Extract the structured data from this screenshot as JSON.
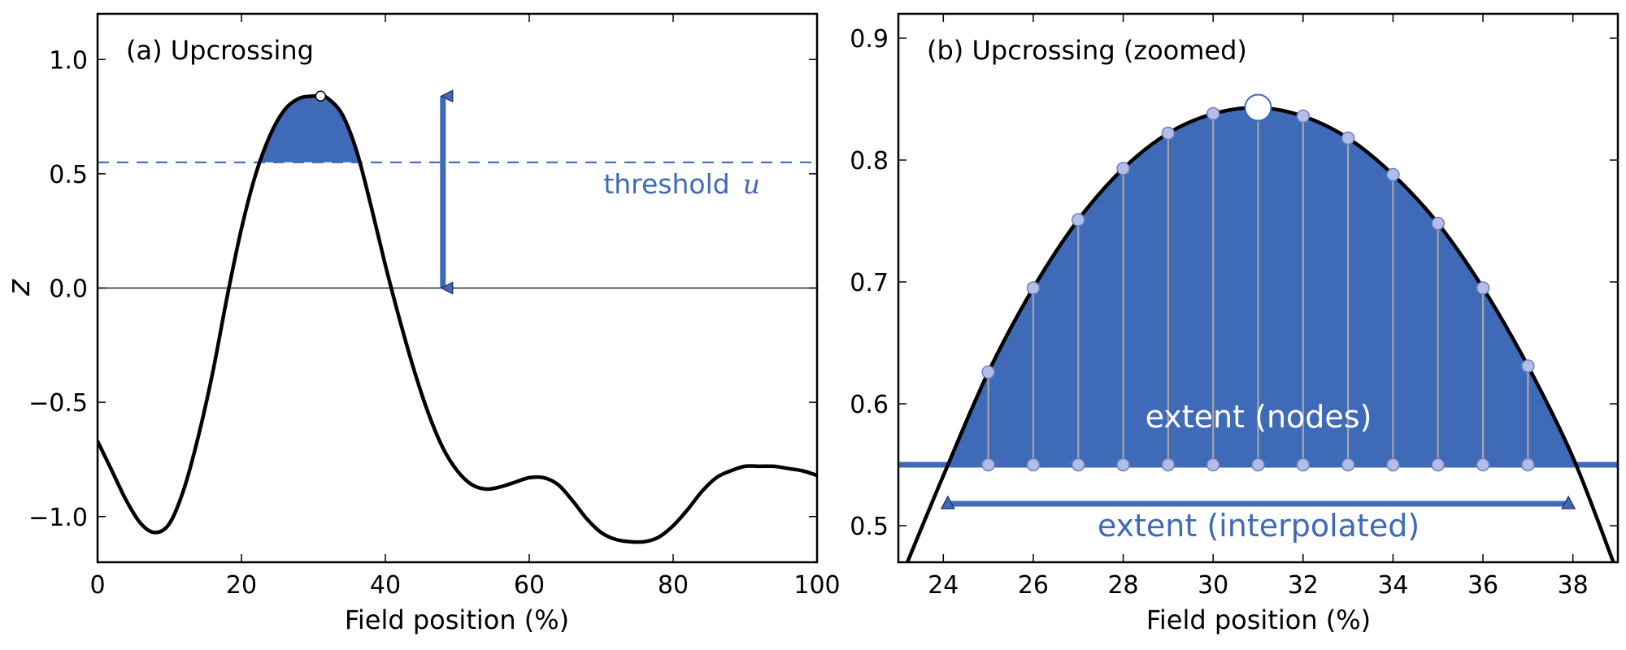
{
  "chart_data": [
    {
      "type": "line",
      "title": "(a) Upcrossing",
      "xlabel": "Field position  (%)",
      "ylabel": "z",
      "xlim": [
        0,
        100
      ],
      "ylim": [
        -1.2,
        1.2
      ],
      "xticks": [
        0,
        20,
        40,
        60,
        80,
        100
      ],
      "yticks": [
        -1.0,
        -0.5,
        0.0,
        0.5,
        1.0
      ],
      "xtick_labels": [
        "0",
        "20",
        "40",
        "60",
        "80",
        "100"
      ],
      "ytick_labels": [
        "−1.0",
        "−0.5",
        "0.0",
        "0.5",
        "1.0"
      ],
      "threshold": 0.55,
      "threshold_label": "threshold",
      "threshold_symbol": "u",
      "zero_line": 0.0,
      "height_arrow": {
        "x": 48,
        "from": 0.0,
        "to": 0.84
      },
      "peak": {
        "x": 31,
        "y": 0.84
      },
      "curve": {
        "x": [
          0,
          2,
          4,
          6,
          8,
          10,
          12,
          14,
          16,
          18,
          20,
          22,
          24,
          26,
          28,
          30,
          31,
          32,
          34,
          36,
          38,
          40,
          42,
          44,
          46,
          48,
          50,
          52,
          54,
          56,
          58,
          60,
          62,
          64,
          66,
          68,
          70,
          72,
          74,
          76,
          78,
          80,
          82,
          84,
          86,
          88,
          90,
          92,
          94,
          96,
          98,
          100
        ],
        "y": [
          -0.67,
          -0.8,
          -0.93,
          -1.03,
          -1.07,
          -1.03,
          -0.88,
          -0.65,
          -0.37,
          -0.04,
          0.26,
          0.5,
          0.67,
          0.78,
          0.83,
          0.84,
          0.84,
          0.83,
          0.76,
          0.6,
          0.36,
          0.1,
          -0.14,
          -0.36,
          -0.55,
          -0.7,
          -0.8,
          -0.86,
          -0.88,
          -0.87,
          -0.85,
          -0.83,
          -0.83,
          -0.86,
          -0.93,
          -1.01,
          -1.07,
          -1.1,
          -1.11,
          -1.11,
          -1.09,
          -1.04,
          -0.97,
          -0.89,
          -0.83,
          -0.8,
          -0.78,
          -0.78,
          -0.78,
          -0.79,
          -0.8,
          -0.82
        ]
      }
    },
    {
      "type": "line",
      "title": "(b) Upcrossing  (zoomed)",
      "xlabel": "Field position  (%)",
      "ylabel": "",
      "xlim": [
        23,
        39
      ],
      "ylim": [
        0.47,
        0.92
      ],
      "xticks": [
        24,
        26,
        28,
        30,
        32,
        34,
        36,
        38
      ],
      "yticks": [
        0.5,
        0.6,
        0.7,
        0.8,
        0.9
      ],
      "xtick_labels": [
        "24",
        "26",
        "28",
        "30",
        "32",
        "34",
        "36",
        "38"
      ],
      "ytick_labels": [
        "0.5",
        "0.6",
        "0.7",
        "0.8",
        "0.9"
      ],
      "threshold": 0.55,
      "peak": {
        "x": 31,
        "y": 0.843
      },
      "nodes": {
        "x": [
          25,
          26,
          27,
          28,
          29,
          30,
          32,
          33,
          34,
          35,
          36,
          37
        ],
        "y": [
          0.626,
          0.695,
          0.751,
          0.793,
          0.822,
          0.838,
          0.836,
          0.818,
          0.788,
          0.748,
          0.695,
          0.631
        ]
      },
      "node_baseline_label": "extent (nodes)",
      "interpolated_extent": {
        "x0": 24.1,
        "x1": 37.9,
        "y": 0.518
      },
      "interpolated_label": "extent (interpolated)",
      "curve": {
        "x": [
          23.2,
          24,
          25,
          26,
          27,
          28,
          29,
          30,
          31,
          32,
          33,
          34,
          35,
          36,
          37,
          38,
          38.9
        ],
        "y": [
          0.47,
          0.541,
          0.626,
          0.695,
          0.751,
          0.793,
          0.822,
          0.838,
          0.843,
          0.836,
          0.818,
          0.788,
          0.748,
          0.695,
          0.631,
          0.556,
          0.47
        ]
      }
    }
  ],
  "colors": {
    "accent": "#3f6ab8",
    "curve": "#000000",
    "node_fill": "#b4bde6",
    "node_stem": "#a6a6a6",
    "white": "#ffffff"
  }
}
